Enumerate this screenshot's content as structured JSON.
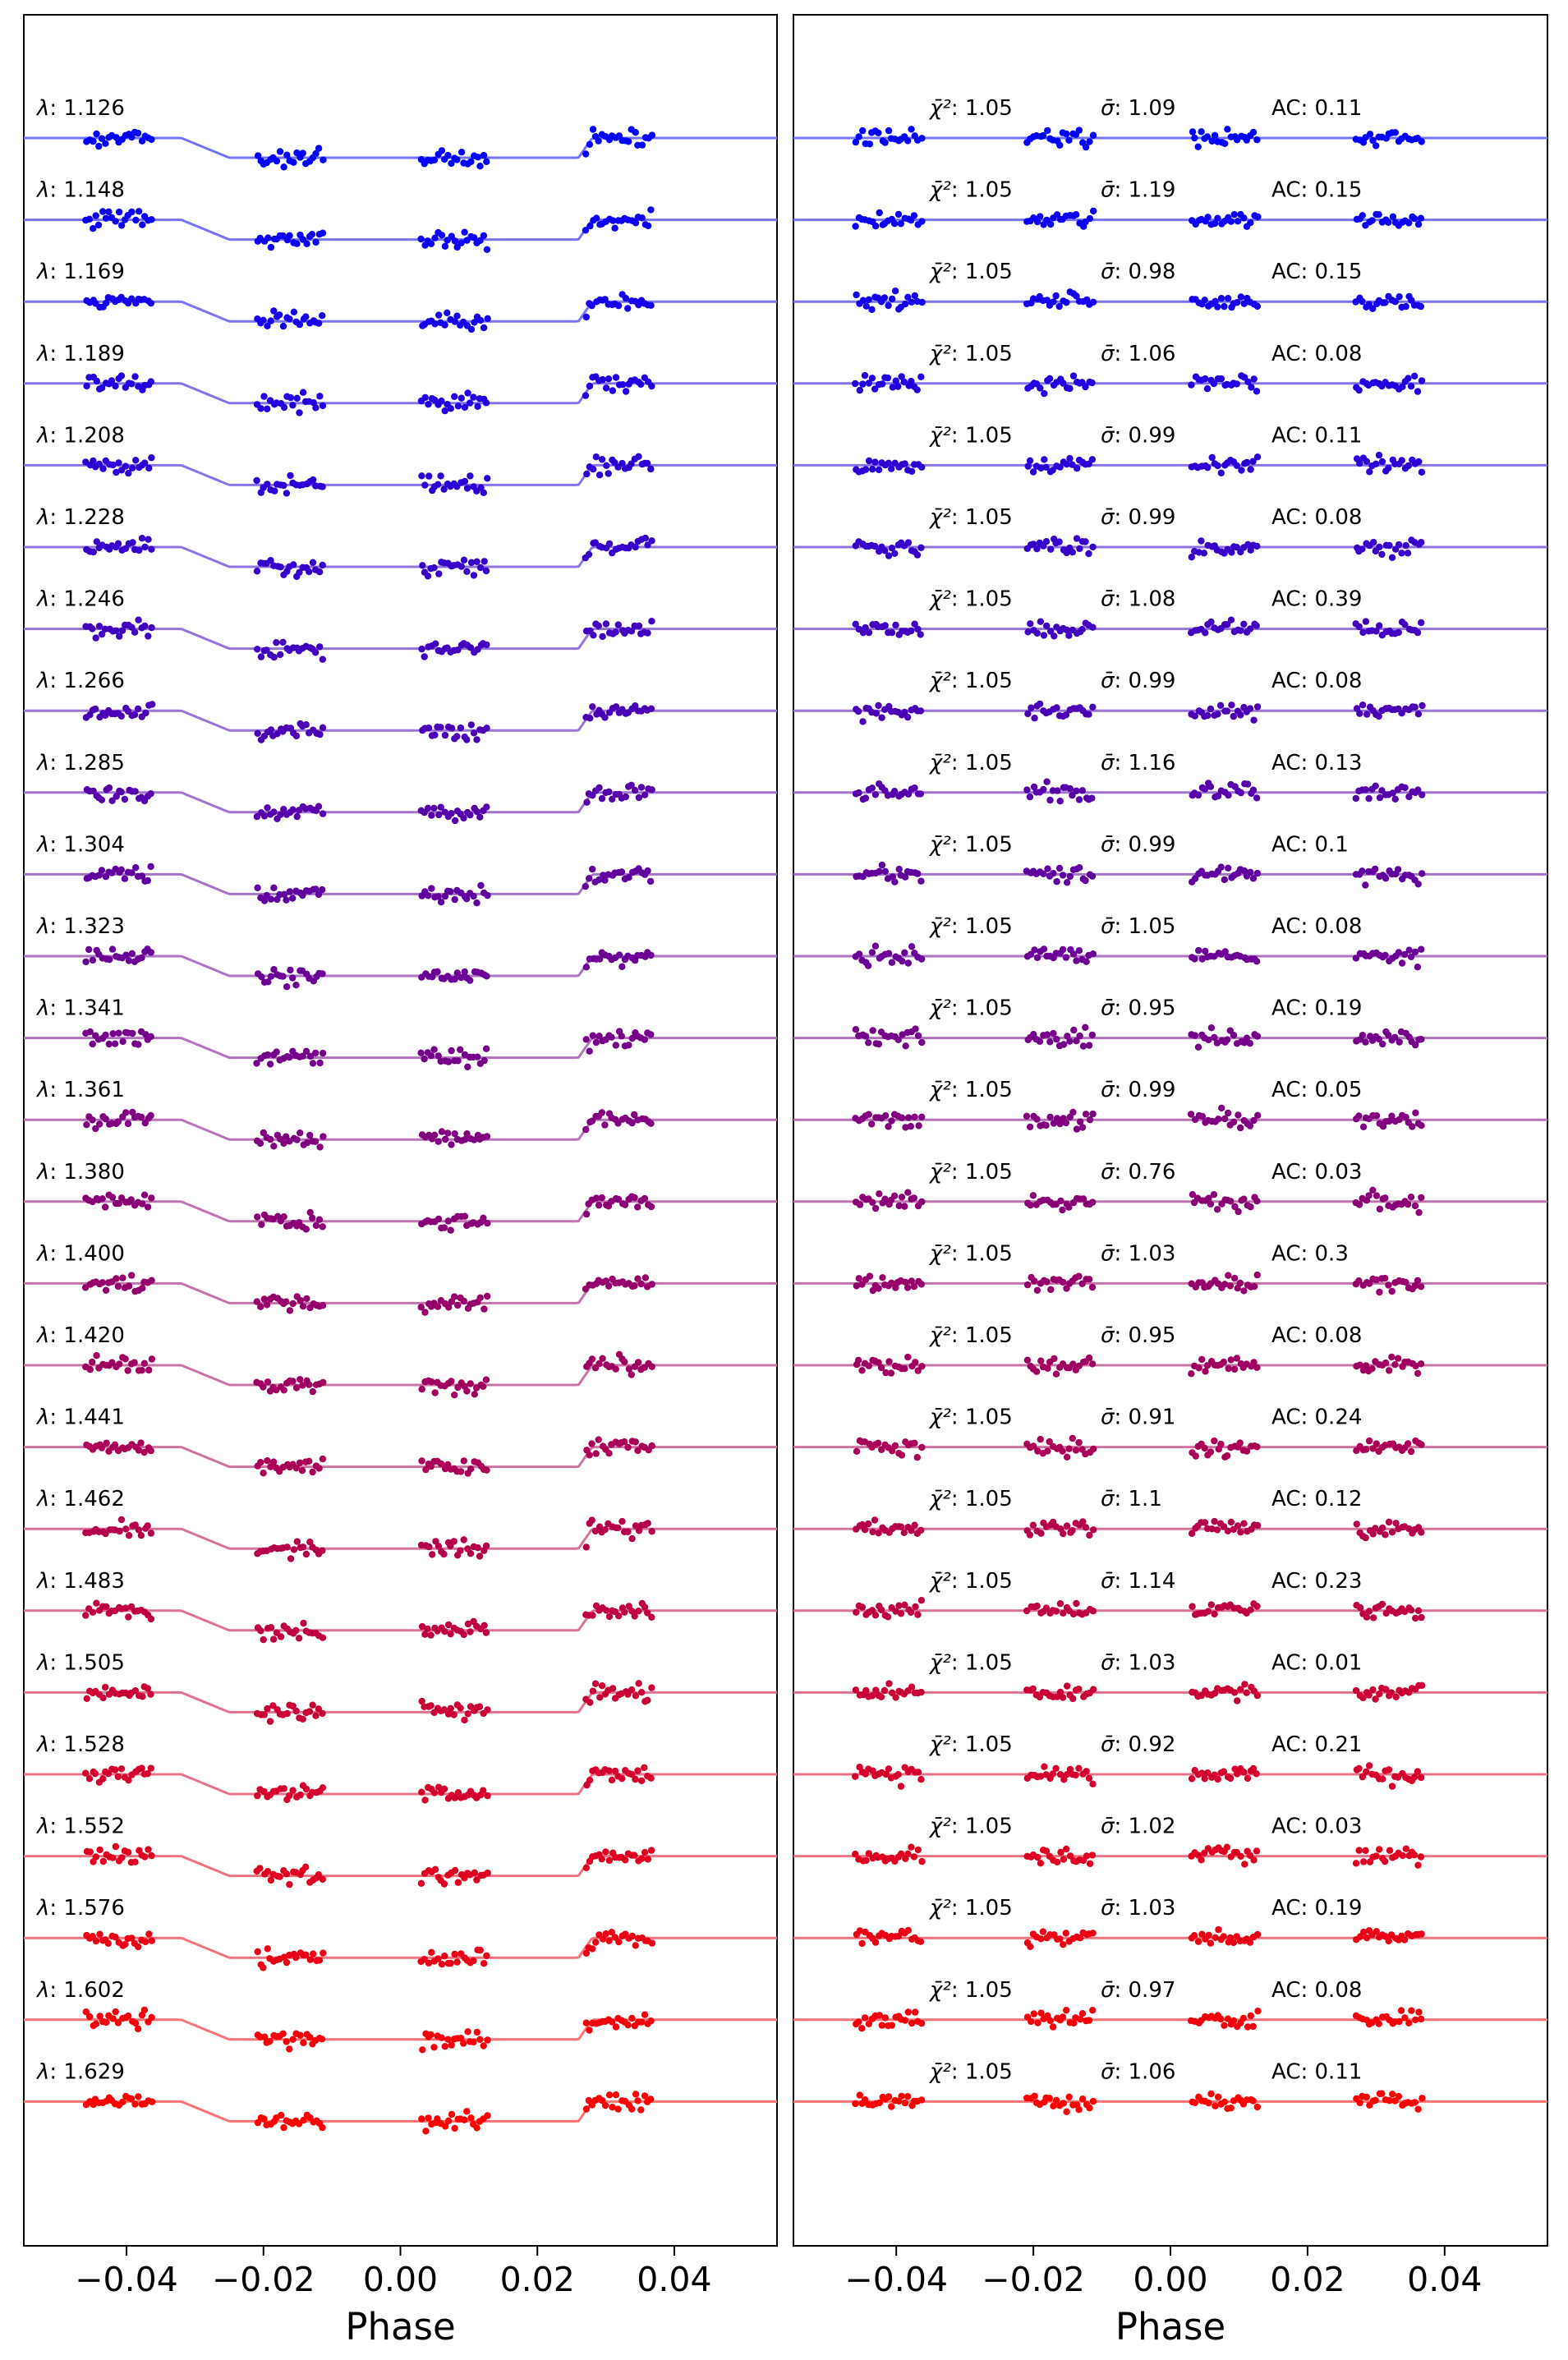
{
  "chart_data": {
    "type": "scatter",
    "panels": [
      {
        "id": "left",
        "description": "light curves with transit model",
        "xlabel": "Phase",
        "model_shape": "transit"
      },
      {
        "id": "right",
        "description": "residuals",
        "xlabel": "Phase",
        "model_shape": "flat"
      }
    ],
    "xlim": [
      -0.055,
      0.055
    ],
    "xticks": [
      -0.04,
      -0.02,
      0.0,
      0.02,
      0.04
    ],
    "xtick_labels": [
      "−0.04",
      "−0.02",
      "0.00",
      "0.02",
      "0.04"
    ],
    "phase_groups": [
      {
        "from": -0.046,
        "to": -0.036
      },
      {
        "from": -0.021,
        "to": -0.011
      },
      {
        "from": 0.003,
        "to": 0.013
      },
      {
        "from": 0.027,
        "to": 0.037
      }
    ],
    "transit": {
      "ingress_start": -0.032,
      "ingress_end": -0.025,
      "egress_start": 0.026,
      "egress_end": 0.028
    },
    "legend": "none",
    "grid": false,
    "color_gradient": {
      "start": "#0000ff",
      "end": "#ff0000"
    },
    "stats_symbols": {
      "chi": "χ̄²",
      "sigma": "σ̄",
      "ac": "AC"
    },
    "series": [
      {
        "wavelength": "1.126",
        "chi2": "1.05",
        "sigma": "1.09",
        "ac": "0.11"
      },
      {
        "wavelength": "1.148",
        "chi2": "1.05",
        "sigma": "1.19",
        "ac": "0.15"
      },
      {
        "wavelength": "1.169",
        "chi2": "1.05",
        "sigma": "0.98",
        "ac": "0.15"
      },
      {
        "wavelength": "1.189",
        "chi2": "1.05",
        "sigma": "1.06",
        "ac": "0.08"
      },
      {
        "wavelength": "1.208",
        "chi2": "1.05",
        "sigma": "0.99",
        "ac": "0.11"
      },
      {
        "wavelength": "1.228",
        "chi2": "1.05",
        "sigma": "0.99",
        "ac": "0.08"
      },
      {
        "wavelength": "1.246",
        "chi2": "1.05",
        "sigma": "1.08",
        "ac": "0.39"
      },
      {
        "wavelength": "1.266",
        "chi2": "1.05",
        "sigma": "0.99",
        "ac": "0.08"
      },
      {
        "wavelength": "1.285",
        "chi2": "1.05",
        "sigma": "1.16",
        "ac": "0.13"
      },
      {
        "wavelength": "1.304",
        "chi2": "1.05",
        "sigma": "0.99",
        "ac": "0.1"
      },
      {
        "wavelength": "1.323",
        "chi2": "1.05",
        "sigma": "1.05",
        "ac": "0.08"
      },
      {
        "wavelength": "1.341",
        "chi2": "1.05",
        "sigma": "0.95",
        "ac": "0.19"
      },
      {
        "wavelength": "1.361",
        "chi2": "1.05",
        "sigma": "0.99",
        "ac": "0.05"
      },
      {
        "wavelength": "1.380",
        "chi2": "1.05",
        "sigma": "0.76",
        "ac": "0.03"
      },
      {
        "wavelength": "1.400",
        "chi2": "1.05",
        "sigma": "1.03",
        "ac": "0.3"
      },
      {
        "wavelength": "1.420",
        "chi2": "1.05",
        "sigma": "0.95",
        "ac": "0.08"
      },
      {
        "wavelength": "1.441",
        "chi2": "1.05",
        "sigma": "0.91",
        "ac": "0.24"
      },
      {
        "wavelength": "1.462",
        "chi2": "1.05",
        "sigma": "1.1",
        "ac": "0.12"
      },
      {
        "wavelength": "1.483",
        "chi2": "1.05",
        "sigma": "1.14",
        "ac": "0.23"
      },
      {
        "wavelength": "1.505",
        "chi2": "1.05",
        "sigma": "1.03",
        "ac": "0.01"
      },
      {
        "wavelength": "1.528",
        "chi2": "1.05",
        "sigma": "0.92",
        "ac": "0.21"
      },
      {
        "wavelength": "1.552",
        "chi2": "1.05",
        "sigma": "1.02",
        "ac": "0.03"
      },
      {
        "wavelength": "1.576",
        "chi2": "1.05",
        "sigma": "1.03",
        "ac": "0.19"
      },
      {
        "wavelength": "1.602",
        "chi2": "1.05",
        "sigma": "0.97",
        "ac": "0.08"
      },
      {
        "wavelength": "1.629",
        "chi2": "1.05",
        "sigma": "1.06",
        "ac": "0.11"
      }
    ]
  }
}
